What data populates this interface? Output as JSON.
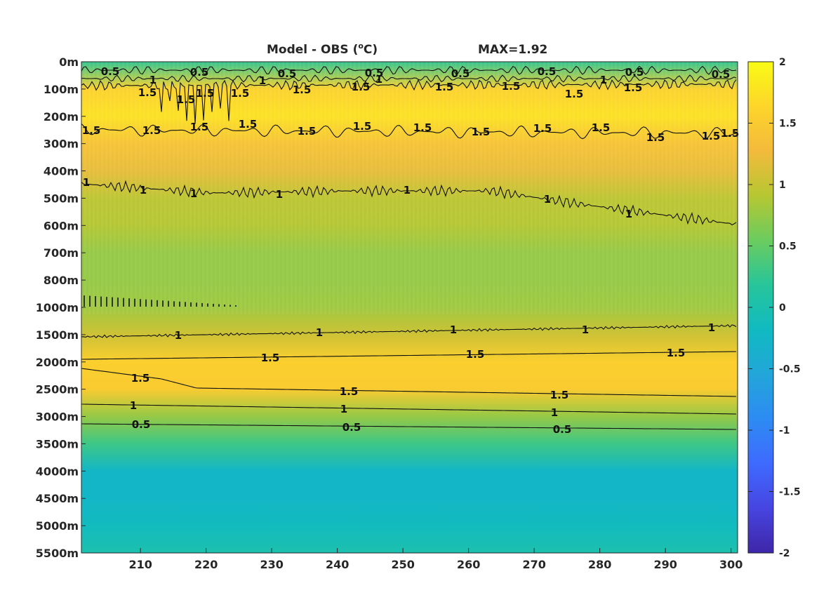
{
  "chart_data": {
    "type": "heatmap",
    "title": "Model - OBS (",
    "title_sup": "o",
    "title_unit": "C)",
    "max_label": "MAX=1.92",
    "x_ticks": [
      "210",
      "220",
      "230",
      "240",
      "250",
      "260",
      "270",
      "280",
      "290",
      "300"
    ],
    "x_range": [
      201,
      301
    ],
    "y_ticks": [
      "0m",
      "100m",
      "200m",
      "300m",
      "400m",
      "500m",
      "600m",
      "700m",
      "800m",
      "1000m",
      "1500m",
      "2000m",
      "2500m",
      "3000m",
      "3500m",
      "4000m",
      "4500m",
      "5000m",
      "5500m"
    ],
    "colorbar": {
      "range": [
        -2,
        2
      ],
      "ticks": [
        "2",
        "1.5",
        "1",
        "0.5",
        "0",
        "-0.5",
        "-1",
        "-1.5",
        "-2"
      ],
      "colormap": "parula",
      "stops": [
        "#3e26a8",
        "#4745e1",
        "#3e6afe",
        "#2d8bf3",
        "#22a6d9",
        "#10bac1",
        "#27c59a",
        "#6bcc5f",
        "#b6c732",
        "#f3ba3c",
        "#fdd52a",
        "#f9fb15"
      ]
    },
    "depth_profile": [
      {
        "depth": "0m",
        "value": 0.25
      },
      {
        "depth": "100m",
        "value": 1.6
      },
      {
        "depth": "200m",
        "value": 1.75
      },
      {
        "depth": "300m",
        "value": 1.4
      },
      {
        "depth": "400m",
        "value": 1.2
      },
      {
        "depth": "500m",
        "value": 0.95
      },
      {
        "depth": "600m",
        "value": 0.9
      },
      {
        "depth": "700m",
        "value": 0.75
      },
      {
        "depth": "800m",
        "value": 0.75
      },
      {
        "depth": "1000m",
        "value": 0.8
      },
      {
        "depth": "1500m",
        "value": 1.05
      },
      {
        "depth": "2000m",
        "value": 1.55
      },
      {
        "depth": "2500m",
        "value": 1.5
      },
      {
        "depth": "3000m",
        "value": 0.75
      },
      {
        "depth": "3500m",
        "value": 0.3
      },
      {
        "depth": "4000m",
        "value": -0.25
      },
      {
        "depth": "4500m",
        "value": -0.25
      },
      {
        "depth": "5000m",
        "value": -0.15
      },
      {
        "depth": "5500m",
        "value": 0.0
      }
    ],
    "contours": [
      {
        "level": "0.5",
        "labels": [
          "0.5",
          "0.5",
          "0.5",
          "0.5",
          "0.5",
          "0.5",
          "0.5",
          "0.5"
        ]
      },
      {
        "level": "1",
        "labels": [
          "1",
          "1",
          "1",
          "1"
        ]
      },
      {
        "level": "1.5",
        "labels": [
          "1.5",
          "1.5",
          "1.5",
          "1.5",
          "1.5",
          "1.5",
          "1.5",
          "1.5",
          "1.5",
          "1.5"
        ]
      },
      {
        "level": "1.5",
        "labels": [
          "1.5",
          "1.5",
          "1.5",
          "1.5",
          "1.5",
          "1.5",
          "1.5",
          "1.5",
          "1.5",
          "1.5",
          "1.5",
          "1.5",
          "1.5"
        ]
      },
      {
        "level": "1",
        "labels": [
          "1",
          "1",
          "1",
          "1",
          "1",
          "1",
          "1"
        ]
      },
      {
        "level": "1",
        "labels": [
          "1",
          "1",
          "1",
          "1",
          "1"
        ]
      },
      {
        "level": "1.5",
        "labels": [
          "1.5",
          "1.5",
          "1.5"
        ]
      },
      {
        "level": "1.5",
        "labels": [
          "1.5",
          "1.5",
          "1.5"
        ]
      },
      {
        "level": "1",
        "labels": [
          "1",
          "1",
          "1"
        ]
      },
      {
        "level": "0.5",
        "labels": [
          "0.5",
          "0.5",
          "0.5"
        ]
      }
    ]
  }
}
